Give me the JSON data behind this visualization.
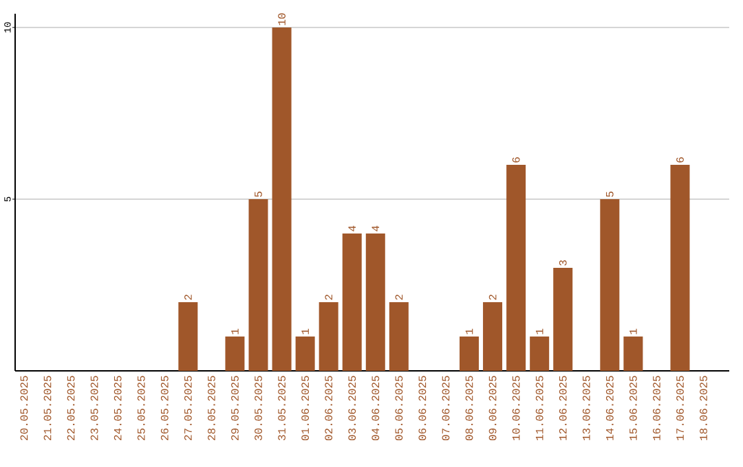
{
  "chart_data": {
    "type": "bar",
    "categories": [
      "20.05.2025",
      "21.05.2025",
      "22.05.2025",
      "23.05.2025",
      "24.05.2025",
      "25.05.2025",
      "26.05.2025",
      "27.05.2025",
      "28.05.2025",
      "29.05.2025",
      "30.05.2025",
      "31.05.2025",
      "01.06.2025",
      "02.06.2025",
      "03.06.2025",
      "04.06.2025",
      "05.06.2025",
      "06.06.2025",
      "07.06.2025",
      "08.06.2025",
      "09.06.2025",
      "10.06.2025",
      "11.06.2025",
      "12.06.2025",
      "13.06.2025",
      "14.06.2025",
      "15.06.2025",
      "16.06.2025",
      "17.06.2025",
      "18.06.2025"
    ],
    "values": [
      0,
      0,
      0,
      0,
      0,
      0,
      0,
      2,
      0,
      1,
      5,
      10,
      1,
      2,
      4,
      4,
      2,
      0,
      0,
      1,
      2,
      6,
      1,
      3,
      0,
      5,
      1,
      0,
      6,
      0
    ],
    "value_labels": [
      null,
      null,
      null,
      null,
      null,
      null,
      null,
      "2",
      null,
      "1",
      "5",
      "10",
      "1",
      "2",
      "4",
      "4",
      "2",
      null,
      null,
      "1",
      "2",
      "6",
      "1",
      "3",
      null,
      "5",
      "1",
      null,
      "6",
      null
    ],
    "color": "#a0572a",
    "ylim": [
      0,
      10.4
    ],
    "yticks": [
      5,
      10
    ],
    "grid": "y"
  }
}
